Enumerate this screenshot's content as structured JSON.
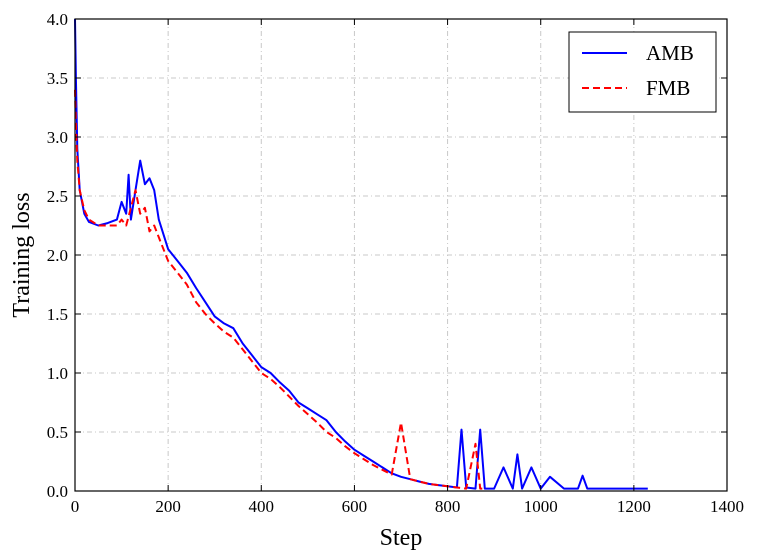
{
  "chart_data": {
    "type": "line",
    "xlabel": "Step",
    "ylabel": "Training loss",
    "xlim": [
      0,
      1400
    ],
    "ylim": [
      0.0,
      4.0
    ],
    "xticks": [
      0,
      200,
      400,
      600,
      800,
      1000,
      1200,
      1400
    ],
    "xtick_labels": [
      "0",
      "200",
      "400",
      "600",
      "800",
      "1000",
      "1200",
      "1400"
    ],
    "yticks": [
      0.0,
      0.5,
      1.0,
      1.5,
      2.0,
      2.5,
      3.0,
      3.5,
      4.0
    ],
    "ytick_labels": [
      "0.0",
      "0.5",
      "1.0",
      "1.5",
      "2.0",
      "2.5",
      "3.0",
      "3.5",
      "4.0"
    ],
    "grid": true,
    "legend_position": "top-right",
    "series": [
      {
        "name": "AMB",
        "color": "#0000ff",
        "style": "solid",
        "x": [
          0,
          2,
          5,
          10,
          20,
          30,
          50,
          70,
          90,
          100,
          110,
          115,
          120,
          130,
          140,
          150,
          160,
          170,
          180,
          200,
          220,
          240,
          260,
          280,
          300,
          320,
          340,
          360,
          380,
          400,
          420,
          440,
          460,
          480,
          500,
          520,
          540,
          560,
          580,
          600,
          620,
          640,
          660,
          680,
          700,
          720,
          740,
          760,
          780,
          800,
          820,
          830,
          840,
          860,
          870,
          880,
          900,
          920,
          940,
          950,
          960,
          980,
          1000,
          1020,
          1050,
          1080,
          1090,
          1100,
          1150,
          1200,
          1230
        ],
        "y": [
          4.0,
          3.5,
          2.9,
          2.55,
          2.35,
          2.28,
          2.25,
          2.27,
          2.3,
          2.45,
          2.35,
          2.68,
          2.3,
          2.55,
          2.8,
          2.6,
          2.65,
          2.55,
          2.3,
          2.05,
          1.95,
          1.85,
          1.72,
          1.6,
          1.48,
          1.42,
          1.38,
          1.25,
          1.15,
          1.05,
          1.0,
          0.92,
          0.85,
          0.75,
          0.7,
          0.65,
          0.6,
          0.5,
          0.42,
          0.35,
          0.3,
          0.25,
          0.2,
          0.15,
          0.12,
          0.1,
          0.08,
          0.06,
          0.05,
          0.04,
          0.03,
          0.52,
          0.03,
          0.02,
          0.52,
          0.02,
          0.02,
          0.2,
          0.02,
          0.31,
          0.02,
          0.2,
          0.02,
          0.12,
          0.02,
          0.02,
          0.13,
          0.02,
          0.02,
          0.02,
          0.02
        ]
      },
      {
        "name": "FMB",
        "color": "#ff0000",
        "style": "dashed",
        "x": [
          0,
          2,
          5,
          10,
          20,
          30,
          50,
          70,
          90,
          100,
          110,
          120,
          130,
          140,
          150,
          160,
          170,
          180,
          200,
          220,
          240,
          260,
          280,
          300,
          320,
          340,
          360,
          380,
          400,
          420,
          440,
          460,
          480,
          500,
          520,
          540,
          560,
          580,
          600,
          620,
          640,
          660,
          680,
          700,
          720,
          740,
          760,
          780,
          800,
          820,
          840,
          860,
          870,
          880
        ],
        "y": [
          3.4,
          3.1,
          2.8,
          2.55,
          2.38,
          2.3,
          2.25,
          2.25,
          2.25,
          2.3,
          2.25,
          2.4,
          2.55,
          2.35,
          2.4,
          2.2,
          2.25,
          2.15,
          1.95,
          1.85,
          1.75,
          1.6,
          1.5,
          1.42,
          1.35,
          1.3,
          1.2,
          1.1,
          1.0,
          0.95,
          0.88,
          0.8,
          0.72,
          0.65,
          0.58,
          0.5,
          0.45,
          0.38,
          0.32,
          0.27,
          0.22,
          0.18,
          0.14,
          0.58,
          0.1,
          0.08,
          0.06,
          0.05,
          0.04,
          0.03,
          0.02,
          0.4,
          0.02,
          0.02
        ]
      }
    ]
  }
}
